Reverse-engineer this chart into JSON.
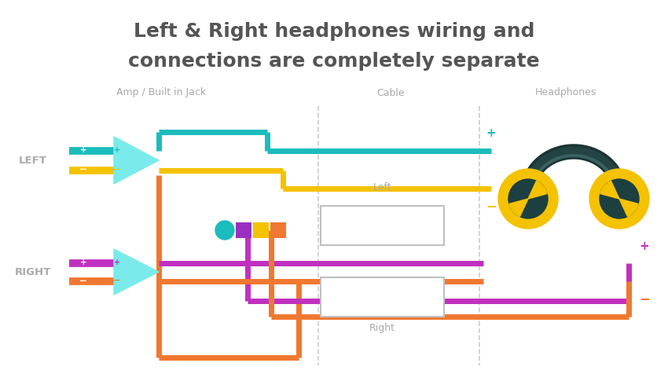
{
  "title_line1": "Left & Right headphones wiring and",
  "title_line2": "connections are completely separate",
  "title_color": "#555555",
  "title_fontsize": 18,
  "bg_color": "#ffffff",
  "label_amp": "Amp / Built in Jack",
  "label_cable": "Cable",
  "label_headphones": "Headphones",
  "label_left": "Left",
  "label_right": "Right",
  "label_LEFT": "LEFT",
  "label_RIGHT": "RIGHT",
  "section_label_color": "#aaaaaa",
  "color_teal": "#1BBCBC",
  "color_teal_light": "#7AEAEA",
  "color_yellow": "#F5C200",
  "color_orange": "#F07830",
  "color_purple": "#C030C0",
  "lw_wire": 5.0,
  "lw_bar": 7.0
}
